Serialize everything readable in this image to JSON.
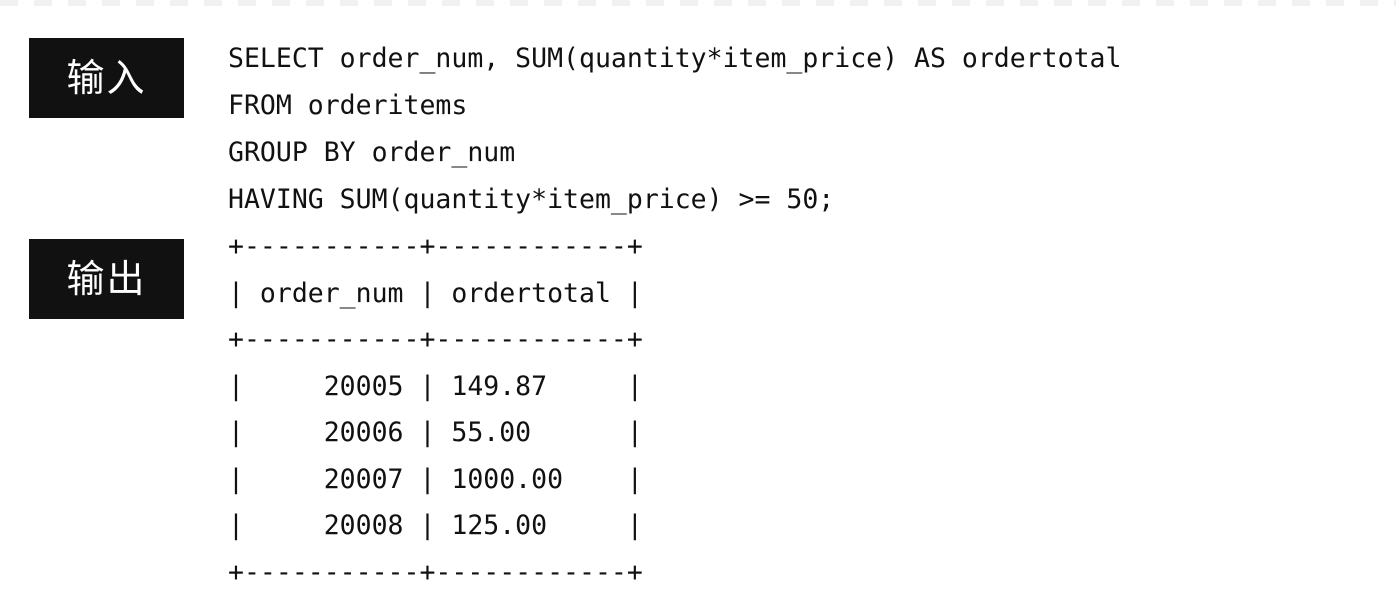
{
  "labels": {
    "input": "输入",
    "output": "输出"
  },
  "sql": [
    "SELECT order_num, SUM(quantity*item_price) AS ordertotal",
    "FROM orderitems",
    "GROUP BY order_num",
    "HAVING SUM(quantity*item_price) >= 50;"
  ],
  "result": {
    "columns": [
      "order_num",
      "ordertotal"
    ],
    "rows": [
      [
        "20005",
        "149.87"
      ],
      [
        "20006",
        "55.00"
      ],
      [
        "20007",
        "1000.00"
      ],
      [
        "20008",
        "125.00"
      ]
    ]
  },
  "table_lines": [
    "+-----------+------------+",
    "| order_num | ordertotal |",
    "+-----------+------------+",
    "|     20005 | 149.87     |",
    "|     20006 | 55.00      |",
    "|     20007 | 1000.00    |",
    "|     20008 | 125.00     |",
    "+-----------+------------+"
  ]
}
